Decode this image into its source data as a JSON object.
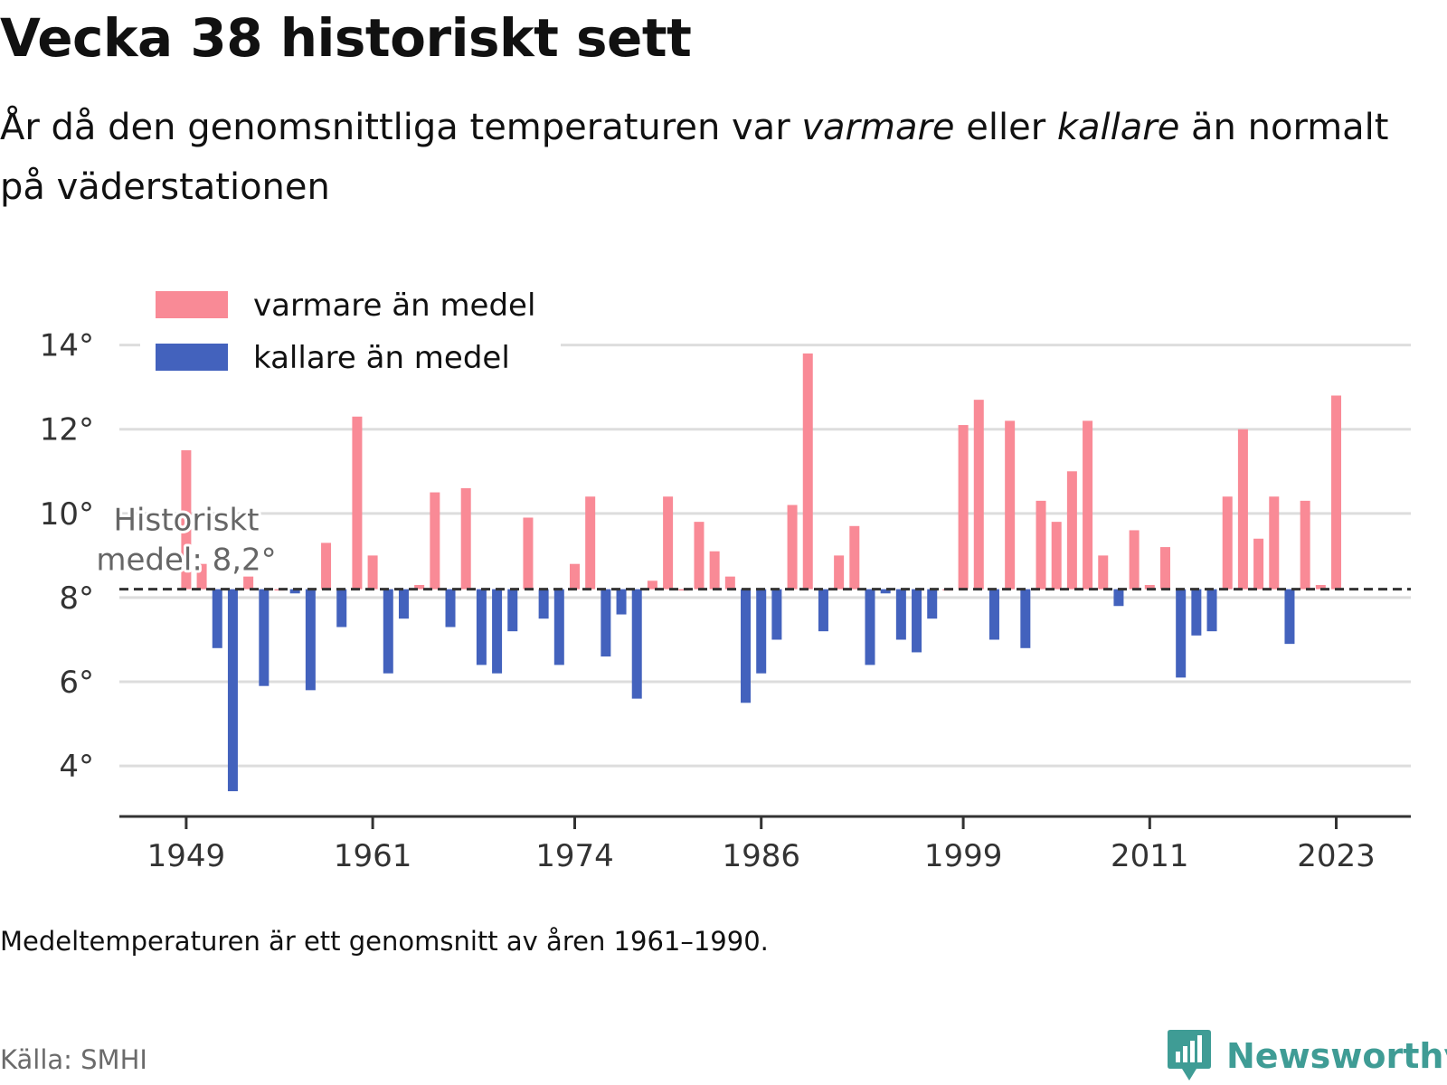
{
  "header": {
    "title": "Vecka 38 historiskt sett",
    "subtitle_parts": [
      "År då den genomsnittliga temperaturen var ",
      "varmare",
      " eller ",
      "kallare",
      " än normalt på väderstationen"
    ]
  },
  "footer": {
    "note": "Medeltemperaturen är ett genomsnitt av åren 1961–1990.",
    "source": "Källa: SMHI",
    "brand": "Newsworthy"
  },
  "colors": {
    "warm": "#f98a96",
    "cold": "#4362bd",
    "grid": "#dddddd",
    "baseline": "#333333",
    "brand": "#3f9c95"
  },
  "icons": {
    "brand_logo": "bar-chart-badge-icon"
  },
  "chart_data": {
    "type": "bar",
    "title": "",
    "xlabel": "",
    "ylabel": "",
    "baseline": 8.2,
    "baseline_label": [
      "Historiskt",
      "medel: 8,2°"
    ],
    "ylim": [
      2.8,
      14.4
    ],
    "yticks": [
      4,
      6,
      8,
      10,
      12,
      14
    ],
    "ytick_labels": [
      "4°",
      "6°",
      "8°",
      "10°",
      "12°",
      "14°"
    ],
    "xlim": [
      1944.7,
      2027.8
    ],
    "xticks": [
      1949,
      1961,
      1974,
      1986,
      1999,
      2011,
      2023
    ],
    "xtick_labels": [
      "1949",
      "1961",
      "1974",
      "1986",
      "1999",
      "2011",
      "2023"
    ],
    "legend": {
      "position": "top-left",
      "items": [
        {
          "key": "warm",
          "label": "varmare än medel"
        },
        {
          "key": "cold",
          "label": "kallare än medel"
        }
      ]
    },
    "grid": true,
    "x": [
      1949,
      1950,
      1951,
      1952,
      1953,
      1954,
      1955,
      1956,
      1957,
      1958,
      1959,
      1960,
      1961,
      1962,
      1963,
      1964,
      1965,
      1966,
      1967,
      1968,
      1969,
      1970,
      1971,
      1972,
      1973,
      1974,
      1975,
      1976,
      1977,
      1978,
      1979,
      1980,
      1981,
      1982,
      1983,
      1984,
      1985,
      1986,
      1987,
      1988,
      1989,
      1990,
      1991,
      1992,
      1993,
      1994,
      1995,
      1996,
      1997,
      1998,
      1999,
      2000,
      2001,
      2002,
      2003,
      2004,
      2005,
      2006,
      2007,
      2008,
      2009,
      2010,
      2011,
      2012,
      2013,
      2014,
      2015,
      2016,
      2017,
      2018,
      2019,
      2020,
      2021,
      2022,
      2023
    ],
    "values": [
      11.5,
      8.8,
      6.8,
      3.4,
      8.5,
      5.9,
      8.2,
      8.1,
      5.8,
      9.3,
      7.3,
      12.3,
      9.0,
      6.2,
      7.5,
      8.3,
      10.5,
      7.3,
      10.6,
      6.4,
      6.2,
      7.2,
      9.9,
      7.5,
      6.4,
      8.8,
      10.4,
      6.6,
      7.6,
      5.6,
      8.4,
      10.4,
      8.2,
      9.8,
      9.1,
      8.5,
      5.5,
      6.2,
      7.0,
      10.2,
      13.8,
      7.2,
      9.0,
      9.7,
      6.4,
      8.1,
      7.0,
      6.7,
      7.5,
      8.2,
      12.1,
      12.7,
      7.0,
      12.2,
      6.8,
      10.3,
      9.8,
      11.0,
      12.2,
      9.0,
      7.8,
      9.6,
      8.3,
      9.2,
      6.1,
      7.1,
      7.2,
      10.4,
      12.0,
      9.4,
      10.4,
      6.9,
      10.3,
      8.3,
      12.8
    ]
  }
}
